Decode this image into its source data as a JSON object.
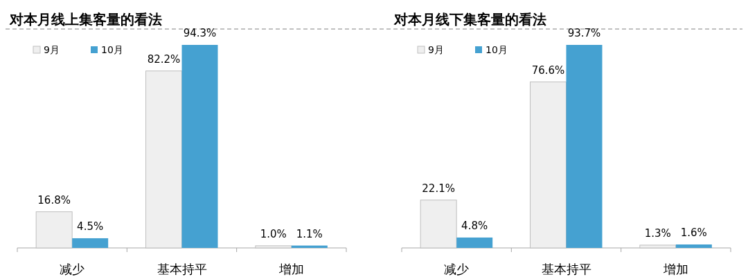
{
  "chart_data": [
    {
      "type": "bar",
      "title": "对本月线上集客量的看法",
      "categories": [
        "减少",
        "基本持平",
        "增加"
      ],
      "series": [
        {
          "name": "9月",
          "color": "#efefef",
          "values": [
            16.8,
            82.2,
            1.0
          ],
          "value_labels": [
            "16.8%",
            "82.2%",
            "1.0%"
          ]
        },
        {
          "name": "10月",
          "color": "#45a1d1",
          "values": [
            4.5,
            94.3,
            1.1
          ],
          "value_labels": [
            "4.5%",
            "94.3%",
            "1.1%"
          ]
        }
      ],
      "legend": "top left"
    },
    {
      "type": "bar",
      "title": "对本月线下集客量的看法",
      "categories": [
        "减少",
        "基本持平",
        "增加"
      ],
      "series": [
        {
          "name": "9月",
          "color": "#efefef",
          "values": [
            22.1,
            76.6,
            1.3
          ],
          "value_labels": [
            "22.1%",
            "76.6%",
            "1.3%"
          ]
        },
        {
          "name": "10月",
          "color": "#45a1d1",
          "values": [
            4.8,
            93.7,
            1.6
          ],
          "value_labels": [
            "4.8%",
            "93.7%",
            "1.6%"
          ]
        }
      ],
      "legend": "top left"
    }
  ]
}
